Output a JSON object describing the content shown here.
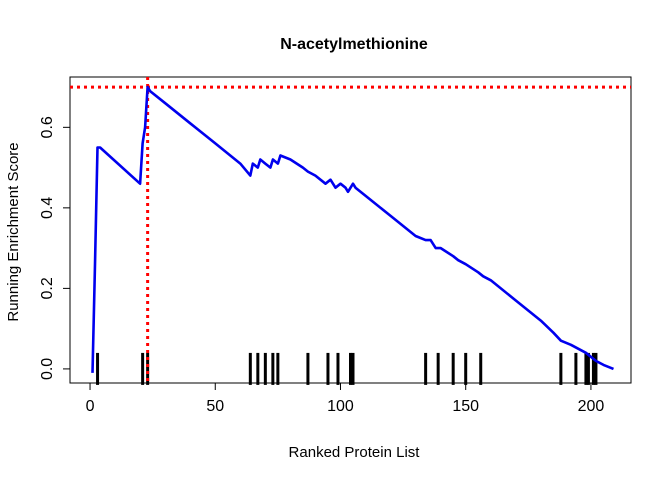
{
  "chart_data": {
    "type": "line",
    "title": "N-acetylmethionine",
    "xlabel": "Ranked Protein List",
    "ylabel": "Running Enrichment Score",
    "xlim": [
      -8,
      216
    ],
    "ylim": [
      -0.035,
      0.725
    ],
    "x_ticks": [
      0,
      50,
      100,
      150,
      200
    ],
    "x_tick_labels": [
      "0",
      "50",
      "100",
      "150",
      "200"
    ],
    "y_ticks": [
      0.0,
      0.2,
      0.4,
      0.6
    ],
    "y_tick_labels": [
      "0.0",
      "0.2",
      "0.4",
      "0.6"
    ],
    "grid": false,
    "legend": "none",
    "series": [
      {
        "color": "#0000ee",
        "x": [
          1,
          2,
          3,
          4,
          20,
          21,
          22,
          23,
          24,
          30,
          40,
          50,
          60,
          64,
          65,
          67,
          68,
          70,
          72,
          73,
          75,
          76,
          80,
          85,
          87,
          90,
          94,
          96,
          98,
          100,
          102,
          103,
          105,
          106,
          110,
          120,
          130,
          134,
          136,
          138,
          140,
          145,
          147,
          150,
          155,
          157,
          160,
          170,
          180,
          185,
          188,
          192,
          195,
          198,
          200,
          202,
          205,
          209
        ],
        "y": [
          -0.01,
          0.26,
          0.55,
          0.55,
          0.46,
          0.56,
          0.6,
          0.7,
          0.69,
          0.66,
          0.61,
          0.56,
          0.51,
          0.48,
          0.51,
          0.5,
          0.52,
          0.51,
          0.5,
          0.52,
          0.51,
          0.53,
          0.52,
          0.5,
          0.49,
          0.48,
          0.46,
          0.47,
          0.45,
          0.46,
          0.45,
          0.44,
          0.46,
          0.45,
          0.43,
          0.38,
          0.33,
          0.32,
          0.32,
          0.3,
          0.3,
          0.28,
          0.27,
          0.26,
          0.24,
          0.23,
          0.22,
          0.17,
          0.12,
          0.09,
          0.07,
          0.06,
          0.05,
          0.04,
          0.03,
          0.02,
          0.01,
          0.0
        ]
      }
    ],
    "hits": [
      3,
      21,
      23,
      64,
      67,
      70,
      73,
      75,
      87,
      95,
      99,
      104,
      105,
      134,
      139,
      145,
      150,
      156,
      188,
      194,
      198,
      199,
      201,
      202
    ],
    "max_score_x": 23,
    "max_score_y": 0.7,
    "line_color": "#0000ee",
    "marker_color": "#ff0000",
    "hit_color": "#000000"
  }
}
